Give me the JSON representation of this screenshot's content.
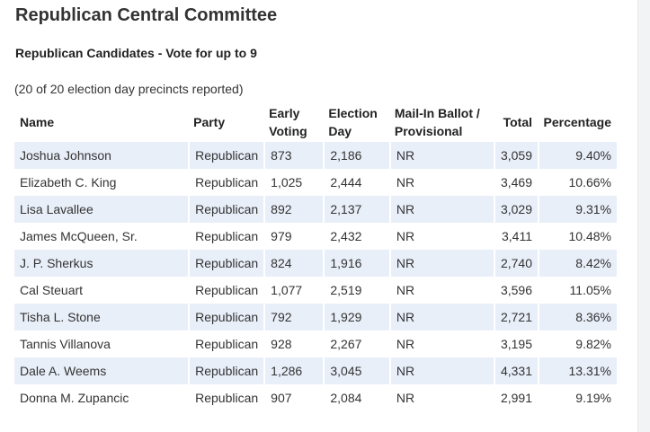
{
  "contest": {
    "title": "Republican Central Committee",
    "subtitle": "Republican Candidates - Vote for up to 9",
    "precincts_note": "(20 of 20 election day precincts reported)"
  },
  "table": {
    "headers": {
      "name": "Name",
      "party": "Party",
      "early_voting": "Early Voting",
      "election_day": "Election Day",
      "mail_in": "Mail-In Ballot / Provisional",
      "total": "Total",
      "percentage": "Percentage"
    },
    "rows": [
      {
        "name": "Joshua Johnson",
        "party": "Republican",
        "early": "873",
        "eday": "2,186",
        "mail": "NR",
        "total": "3,059",
        "pct": "9.40%"
      },
      {
        "name": "Elizabeth C. King",
        "party": "Republican",
        "early": "1,025",
        "eday": "2,444",
        "mail": "NR",
        "total": "3,469",
        "pct": "10.66%"
      },
      {
        "name": "Lisa Lavallee",
        "party": "Republican",
        "early": "892",
        "eday": "2,137",
        "mail": "NR",
        "total": "3,029",
        "pct": "9.31%"
      },
      {
        "name": "James McQueen, Sr.",
        "party": "Republican",
        "early": "979",
        "eday": "2,432",
        "mail": "NR",
        "total": "3,411",
        "pct": "10.48%"
      },
      {
        "name": "J. P. Sherkus",
        "party": "Republican",
        "early": "824",
        "eday": "1,916",
        "mail": "NR",
        "total": "2,740",
        "pct": "8.42%"
      },
      {
        "name": "Cal Steuart",
        "party": "Republican",
        "early": "1,077",
        "eday": "2,519",
        "mail": "NR",
        "total": "3,596",
        "pct": "11.05%"
      },
      {
        "name": "Tisha L. Stone",
        "party": "Republican",
        "early": "792",
        "eday": "1,929",
        "mail": "NR",
        "total": "2,721",
        "pct": "8.36%"
      },
      {
        "name": "Tannis Villanova",
        "party": "Republican",
        "early": "928",
        "eday": "2,267",
        "mail": "NR",
        "total": "3,195",
        "pct": "9.82%"
      },
      {
        "name": "Dale A. Weems",
        "party": "Republican",
        "early": "1,286",
        "eday": "3,045",
        "mail": "NR",
        "total": "4,331",
        "pct": "13.31%"
      },
      {
        "name": "Donna M. Zupancic",
        "party": "Republican",
        "early": "907",
        "eday": "2,084",
        "mail": "NR",
        "total": "2,991",
        "pct": "9.19%"
      }
    ]
  },
  "colors": {
    "stripe": "#e9eff9",
    "text": "#333333"
  }
}
